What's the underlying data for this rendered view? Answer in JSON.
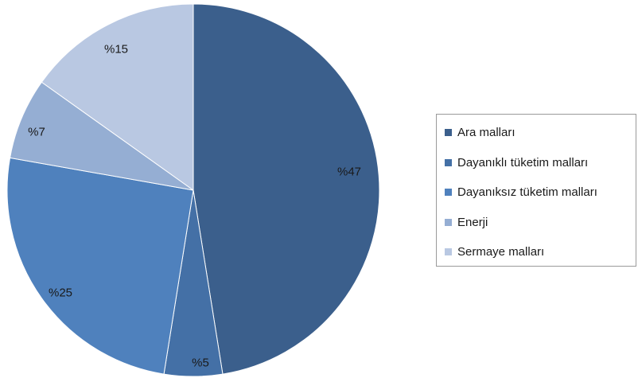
{
  "chart_data": {
    "type": "pie",
    "start_angle_deg": 0,
    "direction": "clockwise",
    "legend_position": "right",
    "slices": [
      {
        "label": "Ara malları",
        "value": 47,
        "text": "%47",
        "color": "#3b5f8c"
      },
      {
        "label": "Dayanıklı tüketim malları",
        "value": 5,
        "text": "%5",
        "color": "#4470a6"
      },
      {
        "label": "Dayanıksız tüketim malları",
        "value": 25,
        "text": "%25",
        "color": "#4f81bd"
      },
      {
        "label": "Enerji",
        "value": 7,
        "text": "%7",
        "color": "#95aed3"
      },
      {
        "label": "Sermaye malları",
        "value": 15,
        "text": "%15",
        "color": "#b9c8e2"
      }
    ]
  }
}
